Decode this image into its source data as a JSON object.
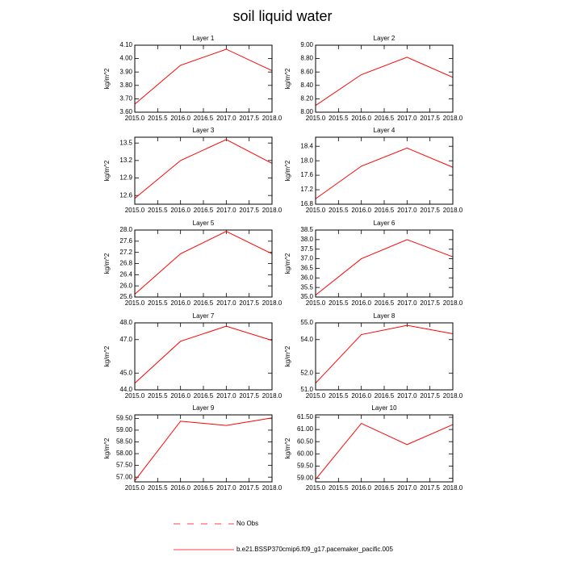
{
  "title": "soil liquid water",
  "legend": [
    {
      "name": "No Obs",
      "color": "#ff0000",
      "dash": true
    },
    {
      "name": "b.e21.BSSP370cmip6.f09_g17.pacemaker_pacific.005",
      "color": "#ff0000",
      "dash": false
    }
  ],
  "chart_data": [
    {
      "type": "line",
      "title": "Layer 1",
      "y_label": "kg/m^2",
      "x": [
        2015,
        2016,
        2017,
        2018
      ],
      "series": [
        {
          "color": "#ff0000",
          "values": [
            3.66,
            3.95,
            4.07,
            3.91
          ]
        }
      ],
      "xlim": [
        2015,
        2018
      ],
      "xticks": [
        {
          "value": 2015,
          "label": "2015.0"
        },
        {
          "value": 2015.5,
          "label": "2015.5"
        },
        {
          "value": 2016,
          "label": "2016.0"
        },
        {
          "value": 2016.5,
          "label": "2016.5"
        },
        {
          "value": 2017,
          "label": "2017.0"
        },
        {
          "value": 2017.5,
          "label": "2017.5"
        },
        {
          "value": 2018,
          "label": "2018.0"
        }
      ],
      "ylim": [
        3.6,
        4.1
      ],
      "yticks": [
        {
          "value": 3.6,
          "label": "3.60"
        },
        {
          "value": 3.7,
          "label": "3.70"
        },
        {
          "value": 3.8,
          "label": "3.80"
        },
        {
          "value": 3.9,
          "label": "3.90"
        },
        {
          "value": 4.0,
          "label": "4.00"
        },
        {
          "value": 4.1,
          "label": "4.10"
        }
      ]
    },
    {
      "type": "line",
      "title": "Layer 2",
      "y_label": "kg/m^2",
      "x": [
        2015,
        2016,
        2017,
        2018
      ],
      "series": [
        {
          "color": "#ff0000",
          "values": [
            8.1,
            8.56,
            8.82,
            8.52
          ]
        }
      ],
      "xlim": [
        2015,
        2018
      ],
      "xticks": [
        {
          "value": 2015,
          "label": "2015.0"
        },
        {
          "value": 2015.5,
          "label": "2015.5"
        },
        {
          "value": 2016,
          "label": "2016.0"
        },
        {
          "value": 2016.5,
          "label": "2016.5"
        },
        {
          "value": 2017,
          "label": "2017.0"
        },
        {
          "value": 2017.5,
          "label": "2017.5"
        },
        {
          "value": 2018,
          "label": "2018.0"
        }
      ],
      "ylim": [
        8.0,
        9.0
      ],
      "yticks": [
        {
          "value": 8.0,
          "label": "8.00"
        },
        {
          "value": 8.2,
          "label": "8.20"
        },
        {
          "value": 8.4,
          "label": "8.40"
        },
        {
          "value": 8.6,
          "label": "8.60"
        },
        {
          "value": 8.8,
          "label": "8.80"
        },
        {
          "value": 9.0,
          "label": "9.00"
        }
      ]
    },
    {
      "type": "line",
      "title": "Layer 3",
      "y_label": "kg/m^2",
      "x": [
        2015,
        2016,
        2017,
        2018
      ],
      "series": [
        {
          "color": "#ff0000",
          "values": [
            12.55,
            13.2,
            13.56,
            13.15
          ]
        }
      ],
      "xlim": [
        2015,
        2018
      ],
      "xticks": [
        {
          "value": 2015,
          "label": "2015.0"
        },
        {
          "value": 2015.5,
          "label": "2015.5"
        },
        {
          "value": 2016,
          "label": "2016.0"
        },
        {
          "value": 2016.5,
          "label": "2016.5"
        },
        {
          "value": 2017,
          "label": "2017.0"
        },
        {
          "value": 2017.5,
          "label": "2017.5"
        },
        {
          "value": 2018,
          "label": "2018.0"
        }
      ],
      "ylim": [
        12.45,
        13.6
      ],
      "yticks": [
        12.6,
        12.9,
        13.2,
        13.5
      ]
    },
    {
      "type": "line",
      "title": "Layer 4",
      "y_label": "kg/m^2",
      "x": [
        2015,
        2016,
        2017,
        2018
      ],
      "series": [
        {
          "color": "#ff0000",
          "values": [
            16.95,
            17.85,
            18.35,
            17.82
          ]
        }
      ],
      "xlim": [
        2015,
        2018
      ],
      "xticks": [
        {
          "value": 2015,
          "label": "2015.0"
        },
        {
          "value": 2015.5,
          "label": "2015.5"
        },
        {
          "value": 2016,
          "label": "2016.0"
        },
        {
          "value": 2016.5,
          "label": "2016.5"
        },
        {
          "value": 2017,
          "label": "2017.0"
        },
        {
          "value": 2017.5,
          "label": "2017.5"
        },
        {
          "value": 2018,
          "label": "2018.0"
        }
      ],
      "ylim": [
        16.8,
        18.65
      ],
      "yticks": [
        16.8,
        17.2,
        17.6,
        {
          "value": 18.0,
          "label": "18.0"
        },
        18.4
      ]
    },
    {
      "type": "line",
      "title": "Layer 5",
      "y_label": "kg/m^2",
      "x": [
        2015,
        2016,
        2017,
        2018
      ],
      "series": [
        {
          "color": "#ff0000",
          "values": [
            25.7,
            27.15,
            27.95,
            27.15
          ]
        }
      ],
      "xlim": [
        2015,
        2018
      ],
      "xticks": [
        {
          "value": 2015,
          "label": "2015.0"
        },
        {
          "value": 2015.5,
          "label": "2015.5"
        },
        {
          "value": 2016,
          "label": "2016.0"
        },
        {
          "value": 2016.5,
          "label": "2016.5"
        },
        {
          "value": 2017,
          "label": "2017.0"
        },
        {
          "value": 2017.5,
          "label": "2017.5"
        },
        {
          "value": 2018,
          "label": "2018.0"
        }
      ],
      "ylim": [
        25.6,
        28.0
      ],
      "yticks": [
        25.6,
        {
          "value": 26.0,
          "label": "26.0"
        },
        26.4,
        26.8,
        27.2,
        27.6,
        {
          "value": 28.0,
          "label": "28.0"
        }
      ]
    },
    {
      "type": "line",
      "title": "Layer 6",
      "y_label": "kg/m^2",
      "x": [
        2015,
        2016,
        2017,
        2018
      ],
      "series": [
        {
          "color": "#ff0000",
          "values": [
            35.1,
            37.0,
            38.0,
            37.1
          ]
        }
      ],
      "xlim": [
        2015,
        2018
      ],
      "xticks": [
        {
          "value": 2015,
          "label": "2015.0"
        },
        {
          "value": 2015.5,
          "label": "2015.5"
        },
        {
          "value": 2016,
          "label": "2016.0"
        },
        {
          "value": 2016.5,
          "label": "2016.5"
        },
        {
          "value": 2017,
          "label": "2017.0"
        },
        {
          "value": 2017.5,
          "label": "2017.5"
        },
        {
          "value": 2018,
          "label": "2018.0"
        }
      ],
      "ylim": [
        35.0,
        38.5
      ],
      "yticks": [
        {
          "value": 35.0,
          "label": "35.0"
        },
        35.5,
        {
          "value": 36.0,
          "label": "36.0"
        },
        36.5,
        {
          "value": 37.0,
          "label": "37.0"
        },
        37.5,
        {
          "value": 38.0,
          "label": "38.0"
        },
        38.5
      ]
    },
    {
      "type": "line",
      "title": "Layer 7",
      "y_label": "kg/m^2",
      "x": [
        2015,
        2016,
        2017,
        2018
      ],
      "series": [
        {
          "color": "#ff0000",
          "values": [
            44.4,
            46.9,
            47.8,
            46.95
          ]
        }
      ],
      "xlim": [
        2015,
        2018
      ],
      "xticks": [
        {
          "value": 2015,
          "label": "2015.0"
        },
        {
          "value": 2015.5,
          "label": "2015.5"
        },
        {
          "value": 2016,
          "label": "2016.0"
        },
        {
          "value": 2016.5,
          "label": "2016.5"
        },
        {
          "value": 2017,
          "label": "2017.0"
        },
        {
          "value": 2017.5,
          "label": "2017.5"
        },
        {
          "value": 2018,
          "label": "2018.0"
        }
      ],
      "ylim": [
        44.0,
        48.0
      ],
      "yticks": [
        {
          "value": 44.0,
          "label": "44.0"
        },
        {
          "value": 45.0,
          "label": "45.0"
        },
        {
          "value": 47.0,
          "label": "47.0"
        },
        {
          "value": 48.0,
          "label": "48.0"
        }
      ]
    },
    {
      "type": "line",
      "title": "Layer 8",
      "y_label": "kg/m^2",
      "x": [
        2015,
        2016,
        2017,
        2018
      ],
      "series": [
        {
          "color": "#ff0000",
          "values": [
            51.4,
            54.3,
            54.85,
            54.35
          ]
        }
      ],
      "xlim": [
        2015,
        2018
      ],
      "xticks": [
        {
          "value": 2015,
          "label": "2015.0"
        },
        {
          "value": 2015.5,
          "label": "2015.5"
        },
        {
          "value": 2016,
          "label": "2016.0"
        },
        {
          "value": 2016.5,
          "label": "2016.5"
        },
        {
          "value": 2017,
          "label": "2017.0"
        },
        {
          "value": 2017.5,
          "label": "2017.5"
        },
        {
          "value": 2018,
          "label": "2018.0"
        }
      ],
      "ylim": [
        51.0,
        55.0
      ],
      "yticks": [
        {
          "value": 51.0,
          "label": "51.0"
        },
        {
          "value": 52.0,
          "label": "52.0"
        },
        {
          "value": 54.0,
          "label": "54.0"
        },
        {
          "value": 55.0,
          "label": "55.0"
        }
      ]
    },
    {
      "type": "line",
      "title": "Layer 9",
      "y_label": "kg/m^2",
      "x": [
        2015,
        2016,
        2017,
        2018
      ],
      "series": [
        {
          "color": "#ff0000",
          "values": [
            56.85,
            59.38,
            59.2,
            59.52
          ]
        }
      ],
      "xlim": [
        2015,
        2018
      ],
      "xticks": [
        {
          "value": 2015,
          "label": "2015.0"
        },
        {
          "value": 2015.5,
          "label": "2015.5"
        },
        {
          "value": 2016,
          "label": "2016.0"
        },
        {
          "value": 2016.5,
          "label": "2016.5"
        },
        {
          "value": 2017,
          "label": "2017.0"
        },
        {
          "value": 2017.5,
          "label": "2017.5"
        },
        {
          "value": 2018,
          "label": "2018.0"
        }
      ],
      "ylim": [
        56.8,
        59.65
      ],
      "yticks": [
        {
          "value": 57.0,
          "label": "57.00"
        },
        {
          "value": 57.5,
          "label": "57.50"
        },
        {
          "value": 58.0,
          "label": "58.00"
        },
        {
          "value": 58.5,
          "label": "58.50"
        },
        {
          "value": 59.0,
          "label": "59.00"
        },
        {
          "value": 59.5,
          "label": "59.50"
        }
      ]
    },
    {
      "type": "line",
      "title": "Layer 10",
      "y_label": "kg/m^2",
      "x": [
        2015,
        2016,
        2017,
        2018
      ],
      "series": [
        {
          "color": "#ff0000",
          "values": [
            58.95,
            61.25,
            60.38,
            61.2
          ]
        }
      ],
      "xlim": [
        2015,
        2018
      ],
      "xticks": [
        {
          "value": 2015,
          "label": "2015.0"
        },
        {
          "value": 2015.5,
          "label": "2015.5"
        },
        {
          "value": 2016,
          "label": "2016.0"
        },
        {
          "value": 2016.5,
          "label": "2016.5"
        },
        {
          "value": 2017,
          "label": "2017.0"
        },
        {
          "value": 2017.5,
          "label": "2017.5"
        },
        {
          "value": 2018,
          "label": "2018.0"
        }
      ],
      "ylim": [
        58.85,
        61.6
      ],
      "yticks": [
        {
          "value": 59.0,
          "label": "59.00"
        },
        {
          "value": 59.5,
          "label": "59.50"
        },
        {
          "value": 60.0,
          "label": "60.00"
        },
        {
          "value": 60.5,
          "label": "60.50"
        },
        {
          "value": 61.0,
          "label": "61.00"
        },
        {
          "value": 61.5,
          "label": "61.50"
        }
      ]
    }
  ]
}
